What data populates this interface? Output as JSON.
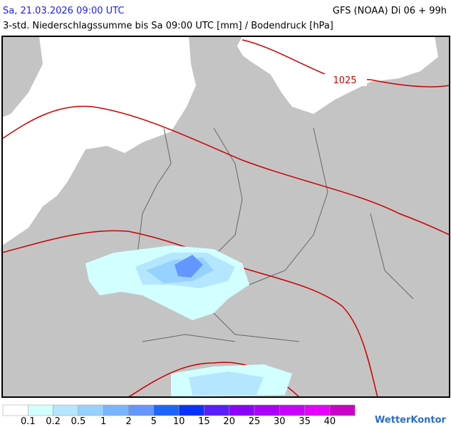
{
  "header": {
    "left": "Sa, 21.03.2026 09:00 UTC",
    "right": "GFS (NOAA) Di 06 + 99h",
    "subtitle": "3-std. Niederschlagssumme bis Sa 09:00 UTC [mm] / Bodendruck [hPa]"
  },
  "map": {
    "isobar_label": "1025"
  },
  "legend": {
    "colors": [
      "#ffffff",
      "#d2ffff",
      "#b4e6ff",
      "#96d2ff",
      "#78b4ff",
      "#6496ff",
      "#1e64ff",
      "#0a32ff",
      "#5a1eff",
      "#8c00ff",
      "#aa00ff",
      "#c800ff",
      "#e600ff",
      "#c800c8"
    ],
    "labels": [
      "0.1",
      "0.2",
      "0.5",
      "1",
      "2",
      "5",
      "10",
      "15",
      "20",
      "25",
      "30",
      "35",
      "40"
    ]
  },
  "brand": "WetterKontor"
}
